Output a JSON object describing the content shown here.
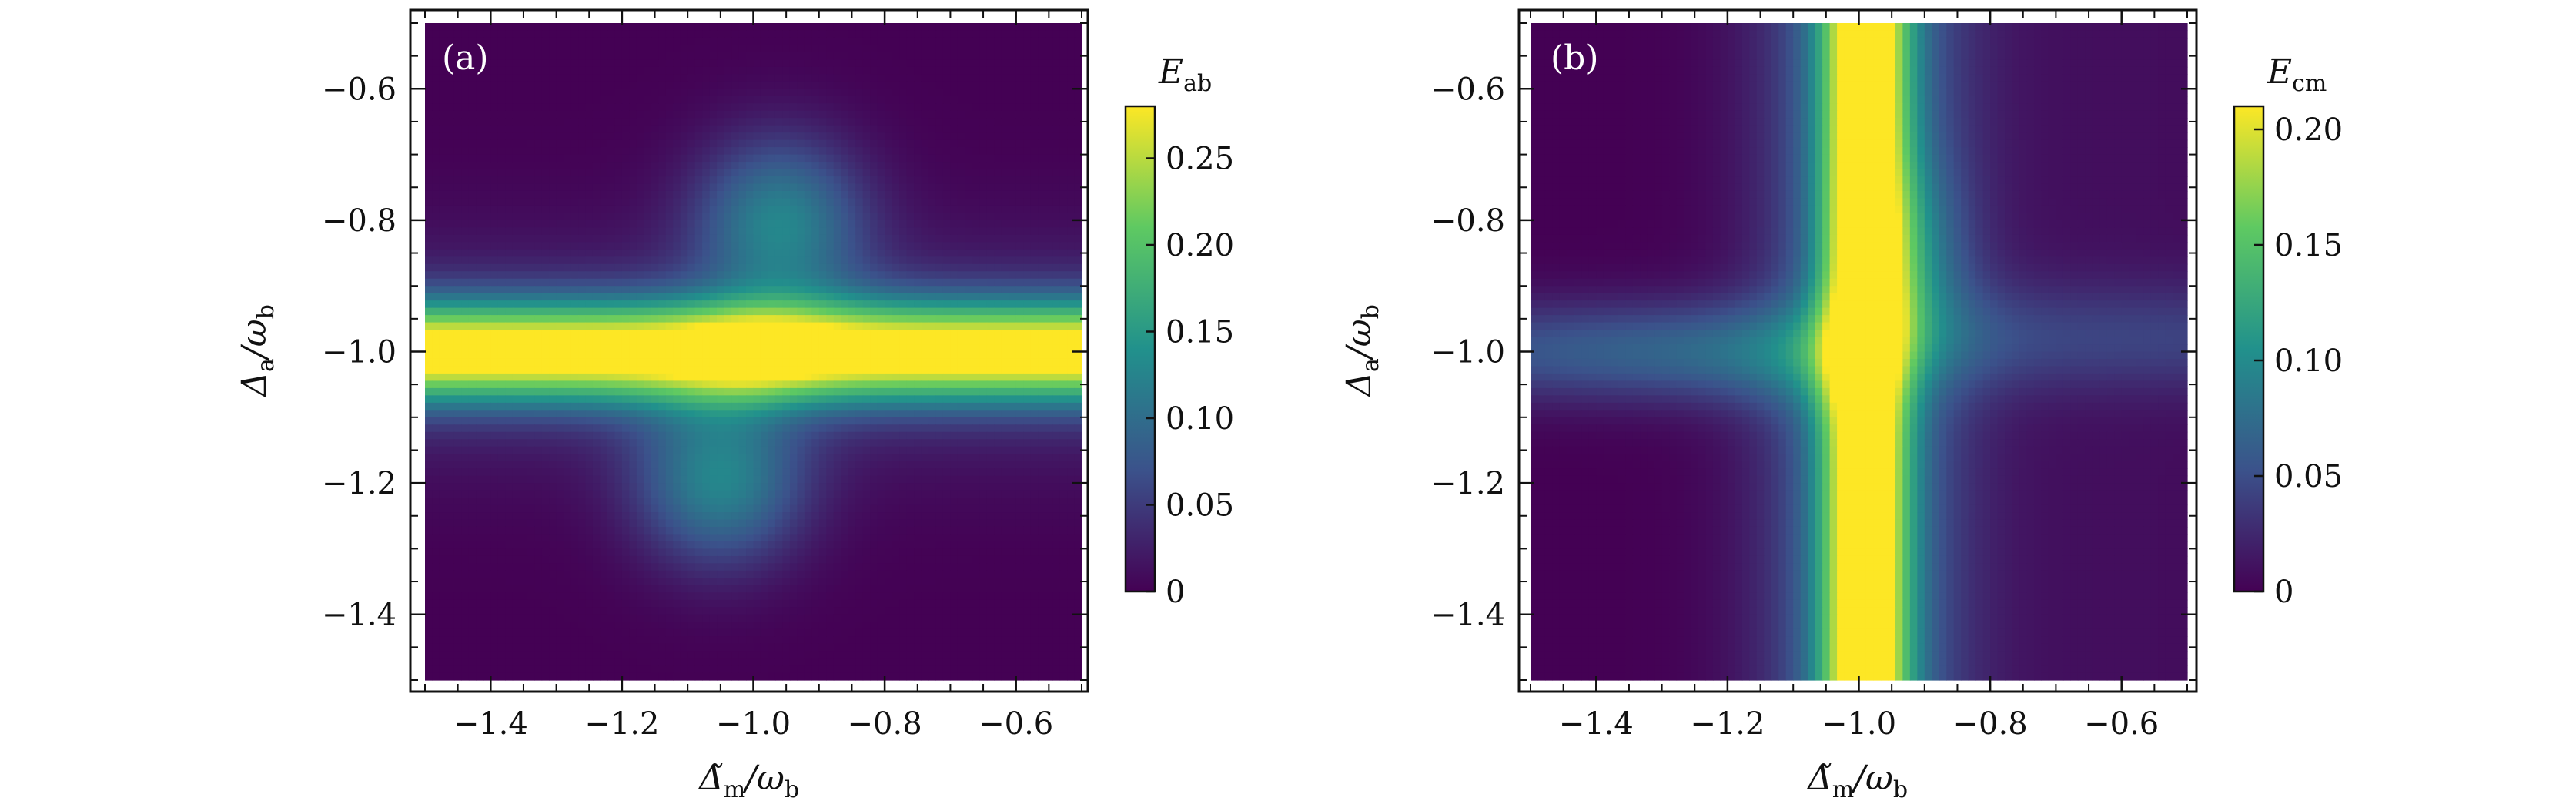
{
  "figure": {
    "panels": [
      {
        "label": "(a)",
        "colorbar": {
          "symbol": "E",
          "subscript": "ab",
          "ticks": [
            "0",
            "0.05",
            "0.10",
            "0.15",
            "0.20",
            "0.25"
          ],
          "max": 0.28
        }
      },
      {
        "label": "(b)",
        "colorbar": {
          "symbol": "E",
          "subscript": "cm",
          "ticks": [
            "0",
            "0.05",
            "0.10",
            "0.15",
            "0.20"
          ],
          "max": 0.21
        }
      }
    ],
    "colormap": [
      "#440154",
      "#3b528b",
      "#21918c",
      "#5ec962",
      "#fde725"
    ],
    "x_axis": {
      "symbol": "Δ̃",
      "subscript": "m",
      "over": "/ω",
      "over_sub": "b"
    },
    "y_axis": {
      "symbol": "Δ",
      "subscript": "a",
      "over": "/ω",
      "over_sub": "b"
    }
  },
  "chart_data": [
    {
      "type": "heatmap",
      "title": "",
      "xlabel": "Δ̃_m/ω_b",
      "ylabel": "Δ_a/ω_b",
      "xlim": [
        -1.5,
        -0.5
      ],
      "ylim": [
        -1.5,
        -0.5
      ],
      "xticks": [
        -1.4,
        -1.2,
        -1.0,
        -0.8,
        -0.6
      ],
      "yticks": [
        -1.4,
        -1.2,
        -1.0,
        -0.8,
        -0.6
      ],
      "xtick_labels": [
        "−1.4",
        "−1.2",
        "−1.0",
        "−0.8",
        "−0.6"
      ],
      "ytick_labels": [
        "−1.4",
        "−1.2",
        "−1.0",
        "−0.8",
        "−0.6"
      ],
      "colorbar_label": "E_ab",
      "colorbar_range": [
        0,
        0.28
      ],
      "features": [
        {
          "description": "horizontal maximum band at y = -1.0",
          "y_center": -1.0,
          "peak": 0.28
        },
        {
          "description": "upper lobe around x = -1.0 extending to y ≈ -0.7",
          "x_center": -0.95,
          "y_extent": [
            -0.95,
            -0.7
          ],
          "peak": 0.12
        },
        {
          "description": "lower lobe around x = -1.05 extending to y ≈ -1.3",
          "x_center": -1.05,
          "y_extent": [
            -1.3,
            -1.05
          ],
          "peak": 0.12
        }
      ]
    },
    {
      "type": "heatmap",
      "title": "",
      "xlabel": "Δ̃_m/ω_b",
      "ylabel": "Δ_a/ω_b",
      "xlim": [
        -1.5,
        -0.5
      ],
      "ylim": [
        -1.5,
        -0.5
      ],
      "xticks": [
        -1.4,
        -1.2,
        -1.0,
        -0.8,
        -0.6
      ],
      "yticks": [
        -1.4,
        -1.2,
        -1.0,
        -0.8,
        -0.6
      ],
      "xtick_labels": [
        "−1.4",
        "−1.2",
        "−1.0",
        "−0.8",
        "−0.6"
      ],
      "ytick_labels": [
        "−1.4",
        "−1.2",
        "−1.0",
        "−0.8",
        "−0.6"
      ],
      "colorbar_label": "E_cm",
      "colorbar_range": [
        0,
        0.21
      ],
      "features": [
        {
          "description": "vertical maximum band at x = -1.0",
          "x_center": -1.0,
          "peak": 0.21
        },
        {
          "description": "horizontal moderate band at y = -1.0 on the left side",
          "y_center": -1.0,
          "x_extent": [
            -1.5,
            -1.0
          ],
          "peak": 0.07
        },
        {
          "description": "faint horizontal band at y = -1.0 on the right side",
          "y_center": -0.98,
          "x_extent": [
            -1.0,
            -0.5
          ],
          "peak": 0.03
        }
      ]
    }
  ]
}
